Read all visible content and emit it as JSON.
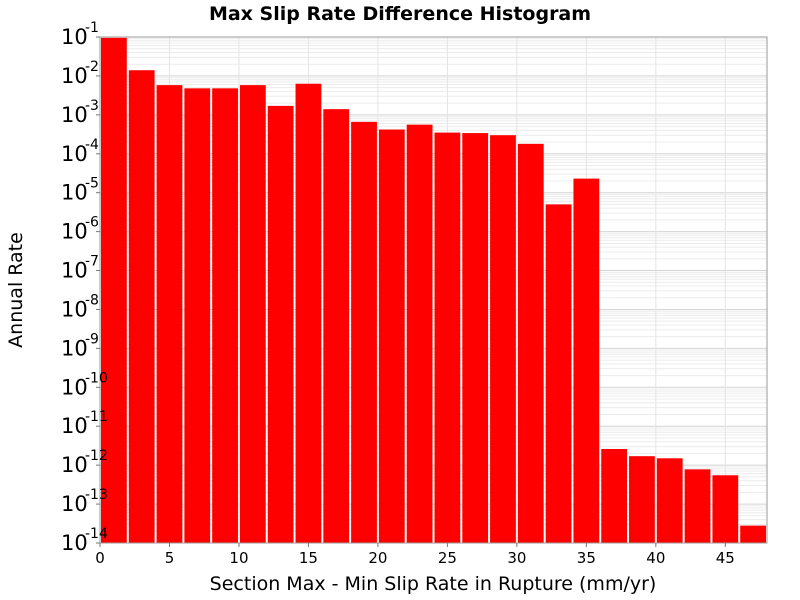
{
  "chart_data": {
    "type": "bar",
    "title": "Max Slip Rate Difference Histogram",
    "xlabel": "Section Max - Min Slip Rate in Rupture (mm/yr)",
    "ylabel": "Annual Rate",
    "xlim": [
      0,
      48
    ],
    "ylim": [
      1e-14,
      0.1
    ],
    "y_scale": "log",
    "bin_width": 2,
    "grid": true,
    "x_ticks": [
      "0",
      "5",
      "10",
      "15",
      "20",
      "25",
      "30",
      "35",
      "40",
      "45"
    ],
    "y_ticks": [
      {
        "base": "10",
        "exp": "-1",
        "value": 0.1
      },
      {
        "base": "10",
        "exp": "-2",
        "value": 0.01
      },
      {
        "base": "10",
        "exp": "-3",
        "value": 0.001
      },
      {
        "base": "10",
        "exp": "-4",
        "value": 0.0001
      },
      {
        "base": "10",
        "exp": "-5",
        "value": 1e-05
      },
      {
        "base": "10",
        "exp": "-6",
        "value": 1e-06
      },
      {
        "base": "10",
        "exp": "-7",
        "value": 1e-07
      },
      {
        "base": "10",
        "exp": "-8",
        "value": 1e-08
      },
      {
        "base": "10",
        "exp": "-9",
        "value": 1e-09
      },
      {
        "base": "10",
        "exp": "-10",
        "value": 1e-10
      },
      {
        "base": "10",
        "exp": "-11",
        "value": 1e-11
      },
      {
        "base": "10",
        "exp": "-12",
        "value": 1e-12
      },
      {
        "base": "10",
        "exp": "-13",
        "value": 1e-13
      },
      {
        "base": "10",
        "exp": "-14",
        "value": 1e-14
      }
    ],
    "bar_color": "#ff0000",
    "bins": [
      {
        "x": 1,
        "value": 0.095
      },
      {
        "x": 3,
        "value": 0.014
      },
      {
        "x": 5,
        "value": 0.0058
      },
      {
        "x": 7,
        "value": 0.0048
      },
      {
        "x": 9,
        "value": 0.0048
      },
      {
        "x": 11,
        "value": 0.0058
      },
      {
        "x": 13,
        "value": 0.0017
      },
      {
        "x": 15,
        "value": 0.0063
      },
      {
        "x": 17,
        "value": 0.0014
      },
      {
        "x": 19,
        "value": 0.00066
      },
      {
        "x": 21,
        "value": 0.00042
      },
      {
        "x": 23,
        "value": 0.00056
      },
      {
        "x": 25,
        "value": 0.00035
      },
      {
        "x": 27,
        "value": 0.00034
      },
      {
        "x": 29,
        "value": 0.0003
      },
      {
        "x": 31,
        "value": 0.00018
      },
      {
        "x": 33,
        "value": 5e-06
      },
      {
        "x": 35,
        "value": 2.3e-05
      },
      {
        "x": 37,
        "value": 2.6e-12
      },
      {
        "x": 39,
        "value": 1.7e-12
      },
      {
        "x": 41,
        "value": 1.5e-12
      },
      {
        "x": 43,
        "value": 7.8e-13
      },
      {
        "x": 45,
        "value": 5.5e-13
      },
      {
        "x": 47,
        "value": 2.8e-14
      }
    ]
  }
}
